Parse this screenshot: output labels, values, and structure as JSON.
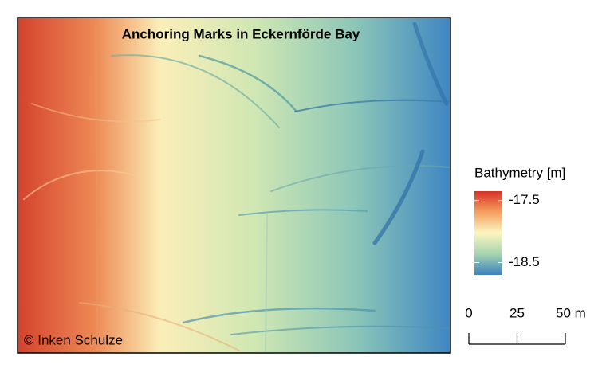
{
  "map": {
    "title": "Anchoring Marks in Eckernförde Bay",
    "credit": "© Inken Schulze"
  },
  "legend": {
    "title": "Bathymetry [m]",
    "lim": [
      -18.7,
      -17.35
    ],
    "ticks": [
      -17.5,
      -18.5
    ]
  },
  "scale_bar": {
    "lim": [
      0,
      50
    ],
    "ticks": [
      0,
      25,
      {
        "value": 50,
        "label": "50 m"
      }
    ]
  }
}
